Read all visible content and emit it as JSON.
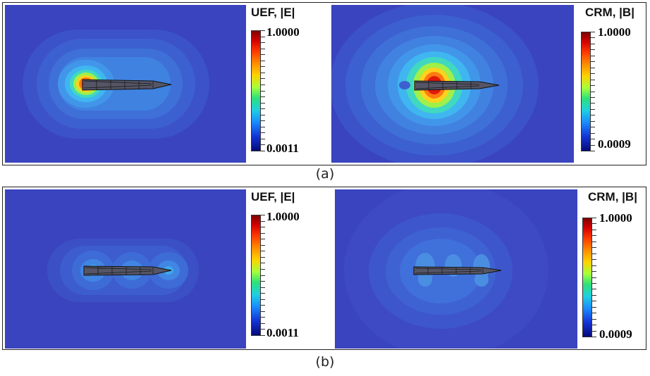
{
  "figure": {
    "panels": [
      {
        "caption": "(a)",
        "left": {
          "title": "UEF, |E|",
          "max_label": "1.0000",
          "min_label": "0.0011",
          "field": "electric"
        },
        "right": {
          "title": "CRM, |B|",
          "max_label": "1.0000",
          "min_label": "0.0009",
          "field": "magnetic"
        }
      },
      {
        "caption": "(b)",
        "left": {
          "title": "UEF, |E|",
          "max_label": "1.0000",
          "min_label": "0.0011",
          "field": "electric"
        },
        "right": {
          "title": "CRM, |B|",
          "max_label": "1.0000",
          "min_label": "0.0009",
          "field": "magnetic"
        }
      }
    ],
    "colormap": [
      "#050a7a",
      "#1434d6",
      "#1a8cff",
      "#1fd0e0",
      "#2ee07a",
      "#a6ff3a",
      "#ffd200",
      "#ff8c00",
      "#ff3a00",
      "#d40000",
      "#7f0000"
    ],
    "background_color": "#3b47c2"
  }
}
